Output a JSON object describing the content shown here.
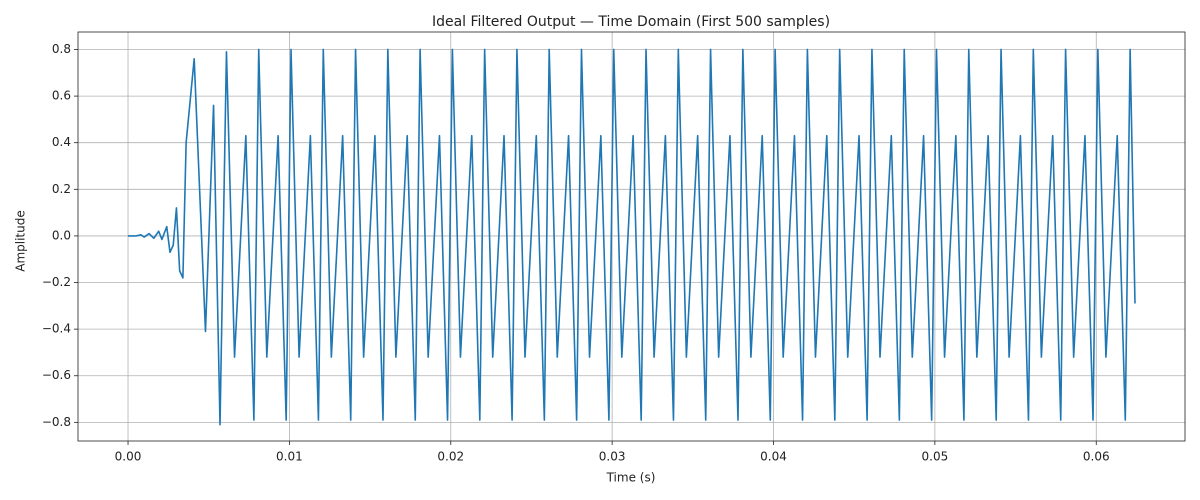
{
  "chart_data": {
    "type": "line",
    "title": "Ideal Filtered Output — Time Domain (First 500 samples)",
    "x_label": "Time (s)",
    "y_label": "Amplitude",
    "grid": true,
    "xlim": [
      -0.0031,
      0.0655
    ],
    "ylim": [
      -0.88,
      0.875
    ],
    "xticks": [
      {
        "value": 0,
        "label": "0.00"
      },
      0.01,
      0.02,
      0.03,
      0.04,
      0.05,
      0.06
    ],
    "yticks": [
      {
        "value": -0.8,
        "label": "−0.8"
      },
      {
        "value": -0.6,
        "label": "−0.6"
      },
      {
        "value": -0.4,
        "label": "−0.4"
      },
      {
        "value": -0.2,
        "label": "−0.2"
      },
      {
        "value": 0,
        "label": "0.0"
      },
      0.2,
      0.4,
      0.6,
      0.8
    ],
    "x": [
      0,
      0.0005,
      0.0008,
      0.001,
      0.0013,
      0.0016,
      0.0019,
      0.0021,
      0.0024,
      0.0026,
      0.0028,
      0.003,
      0.0032,
      0.0034,
      0.0036,
      0.0041,
      0.0048,
      0.0053,
      0.0057,
      0.0061,
      0.0066,
      0.0073,
      0.0078,
      0.0081,
      0.0086,
      0.0093,
      0.0098,
      0.0101,
      0.0106,
      0.0113,
      0.0118,
      0.0121,
      0.0126,
      0.0133,
      0.0138,
      0.0141,
      0.0146,
      0.0153,
      0.0158,
      0.0161,
      0.0166,
      0.0173,
      0.0178,
      0.0181,
      0.0186,
      0.0193,
      0.0198,
      0.0201,
      0.0206,
      0.0213,
      0.0218,
      0.0221,
      0.0226,
      0.0233,
      0.0238,
      0.0241,
      0.0246,
      0.0253,
      0.0258,
      0.0261,
      0.0266,
      0.0273,
      0.0278,
      0.0281,
      0.0286,
      0.0293,
      0.0298,
      0.0301,
      0.0306,
      0.0313,
      0.0318,
      0.0321,
      0.0326,
      0.0333,
      0.0338,
      0.0341,
      0.0346,
      0.0353,
      0.0358,
      0.0361,
      0.0366,
      0.0373,
      0.0378,
      0.0381,
      0.0386,
      0.0393,
      0.0398,
      0.0401,
      0.0406,
      0.0413,
      0.0418,
      0.0421,
      0.0426,
      0.0433,
      0.0438,
      0.0441,
      0.0446,
      0.0453,
      0.0458,
      0.0461,
      0.0466,
      0.0473,
      0.0478,
      0.0481,
      0.0486,
      0.0493,
      0.0498,
      0.0501,
      0.0506,
      0.0513,
      0.0518,
      0.0521,
      0.0526,
      0.0533,
      0.0538,
      0.0541,
      0.0546,
      0.0553,
      0.0558,
      0.0561,
      0.0566,
      0.0573,
      0.0578,
      0.0581,
      0.0586,
      0.0593,
      0.0598,
      0.0601,
      0.0606,
      0.0613,
      0.0618,
      0.0621,
      0.0624
    ],
    "series": [
      {
        "color": "#1f77b4",
        "values": [
          0,
          0,
          0.005,
          -0.005,
          0.01,
          -0.01,
          0.02,
          -0.015,
          0.04,
          -0.07,
          -0.04,
          0.12,
          -0.15,
          -0.18,
          0.4,
          0.76,
          -0.41,
          0.56,
          -0.81,
          0.79,
          -0.52,
          0.43,
          -0.79,
          0.8,
          -0.52,
          0.43,
          -0.79,
          0.8,
          -0.52,
          0.43,
          -0.79,
          0.8,
          -0.52,
          0.43,
          -0.79,
          0.8,
          -0.52,
          0.43,
          -0.79,
          0.8,
          -0.52,
          0.43,
          -0.79,
          0.8,
          -0.52,
          0.43,
          -0.79,
          0.8,
          -0.52,
          0.43,
          -0.79,
          0.8,
          -0.52,
          0.43,
          -0.79,
          0.8,
          -0.52,
          0.43,
          -0.79,
          0.8,
          -0.52,
          0.43,
          -0.79,
          0.8,
          -0.52,
          0.43,
          -0.79,
          0.8,
          -0.52,
          0.43,
          -0.79,
          0.8,
          -0.52,
          0.43,
          -0.79,
          0.8,
          -0.52,
          0.43,
          -0.79,
          0.8,
          -0.52,
          0.43,
          -0.79,
          0.8,
          -0.52,
          0.43,
          -0.79,
          0.8,
          -0.52,
          0.43,
          -0.79,
          0.8,
          -0.52,
          0.43,
          -0.79,
          0.8,
          -0.52,
          0.43,
          -0.79,
          0.8,
          -0.52,
          0.43,
          -0.79,
          0.8,
          -0.52,
          0.43,
          -0.79,
          0.8,
          -0.52,
          0.43,
          -0.79,
          0.8,
          -0.52,
          0.43,
          -0.79,
          0.8,
          -0.52,
          0.43,
          -0.79,
          0.8,
          -0.52,
          0.43,
          -0.79,
          0.8,
          -0.52,
          0.43,
          -0.79,
          0.8,
          -0.52,
          0.43,
          -0.79,
          0.8,
          -0.29
        ]
      }
    ]
  }
}
